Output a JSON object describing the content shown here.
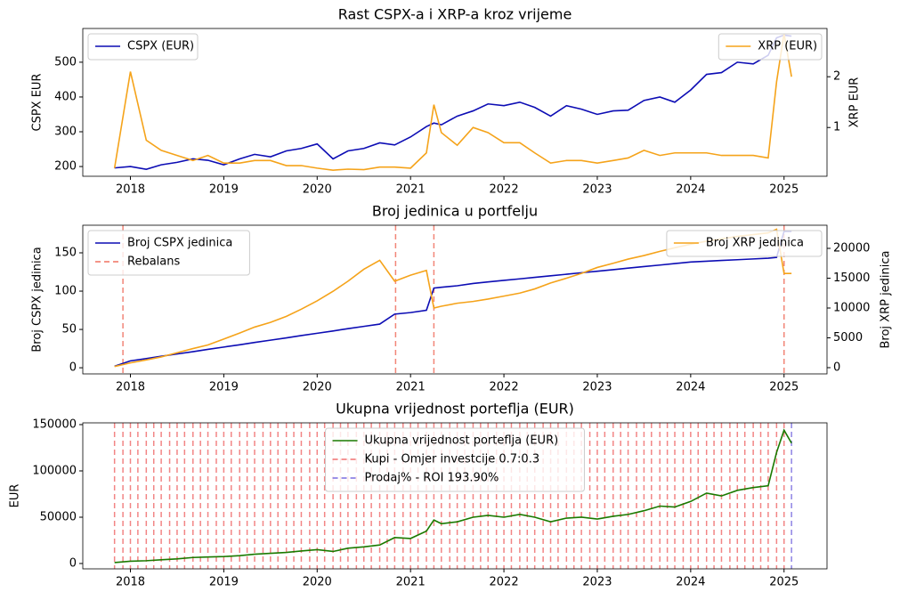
{
  "chart_data": [
    {
      "type": "line",
      "title": "Rast CSPX-a i XRP-a kroz vrijeme",
      "ylabel": "CSPX EUR",
      "y2label": "XRP EUR",
      "x": [
        2017.83,
        2018.0,
        2018.17,
        2018.33,
        2018.5,
        2018.67,
        2018.83,
        2019.0,
        2019.17,
        2019.33,
        2019.5,
        2019.67,
        2019.83,
        2020.0,
        2020.17,
        2020.33,
        2020.5,
        2020.67,
        2020.83,
        2021.0,
        2021.17,
        2021.25,
        2021.33,
        2021.5,
        2021.67,
        2021.83,
        2022.0,
        2022.17,
        2022.33,
        2022.5,
        2022.67,
        2022.83,
        2023.0,
        2023.17,
        2023.33,
        2023.5,
        2023.67,
        2023.83,
        2024.0,
        2024.17,
        2024.33,
        2024.5,
        2024.67,
        2024.83,
        2024.92,
        2025.0,
        2025.08
      ],
      "xlim": [
        2017.49,
        2025.46
      ],
      "xticks": [
        2018,
        2019,
        2020,
        2021,
        2022,
        2023,
        2024,
        2025
      ],
      "ylim": [
        172,
        597
      ],
      "yticks": [
        200,
        300,
        400,
        500
      ],
      "y2lim": [
        0.04,
        2.95
      ],
      "y2ticks": [
        1,
        2
      ],
      "series": [
        {
          "name": "CSPX (EUR)",
          "color": "#0c0cb4",
          "legend": "upper left",
          "values": [
            196,
            200,
            192,
            205,
            212,
            222,
            218,
            205,
            222,
            235,
            228,
            245,
            252,
            265,
            222,
            245,
            252,
            268,
            262,
            285,
            315,
            325,
            320,
            345,
            360,
            380,
            375,
            385,
            370,
            345,
            375,
            365,
            350,
            360,
            362,
            390,
            400,
            385,
            420,
            465,
            470,
            500,
            495,
            520,
            570,
            578,
            575
          ]
        },
        {
          "name": "XRP (EUR)",
          "color": "#f5a31a",
          "axis": "y2",
          "legend": "upper right",
          "values": [
            0.2,
            2.1,
            0.75,
            0.55,
            0.45,
            0.35,
            0.45,
            0.3,
            0.3,
            0.35,
            0.35,
            0.25,
            0.25,
            0.2,
            0.16,
            0.18,
            0.17,
            0.22,
            0.22,
            0.2,
            0.5,
            1.45,
            0.9,
            0.65,
            1.0,
            0.9,
            0.7,
            0.7,
            0.5,
            0.3,
            0.35,
            0.35,
            0.3,
            0.35,
            0.4,
            0.55,
            0.45,
            0.5,
            0.5,
            0.5,
            0.45,
            0.45,
            0.45,
            0.4,
            1.9,
            2.85,
            2.0
          ]
        }
      ]
    },
    {
      "type": "line",
      "title": "Broj jedinica u portfelju",
      "ylabel": "Broj CSPX jedinica",
      "y2label": "Broj XRP jedinica",
      "x": [
        2017.83,
        2018.0,
        2018.17,
        2018.33,
        2018.5,
        2018.67,
        2018.83,
        2019.0,
        2019.17,
        2019.33,
        2019.5,
        2019.67,
        2019.83,
        2020.0,
        2020.17,
        2020.33,
        2020.5,
        2020.67,
        2020.83,
        2021.0,
        2021.17,
        2021.25,
        2021.33,
        2021.5,
        2021.67,
        2021.83,
        2022.0,
        2022.17,
        2022.33,
        2022.5,
        2022.67,
        2022.83,
        2023.0,
        2023.17,
        2023.33,
        2023.5,
        2023.67,
        2023.83,
        2024.0,
        2024.17,
        2024.33,
        2024.5,
        2024.67,
        2024.83,
        2024.92,
        2025.0,
        2025.08
      ],
      "xlim": [
        2017.49,
        2025.46
      ],
      "xticks": [
        2018,
        2019,
        2020,
        2021,
        2022,
        2023,
        2024,
        2025
      ],
      "ylim": [
        -8,
        186
      ],
      "yticks": [
        0,
        50,
        100,
        150
      ],
      "y2lim": [
        -1045,
        23880
      ],
      "y2ticks": [
        0,
        5000,
        10000,
        15000,
        20000
      ],
      "series": [
        {
          "name": "Broj CSPX jedinica",
          "color": "#0c0cb4",
          "legend": "upper left",
          "values": [
            2,
            9,
            12,
            15,
            18,
            21,
            24,
            27,
            30,
            33,
            36,
            39,
            42,
            45,
            48,
            51,
            54,
            57,
            70,
            72,
            75,
            104,
            105,
            107,
            110,
            112,
            114,
            116,
            118,
            120,
            122,
            124,
            126,
            128,
            130,
            132,
            134,
            136,
            138,
            139,
            140,
            141,
            142,
            143,
            144,
            178,
            178
          ]
        },
        {
          "name": "Broj XRP jedinica",
          "color": "#f5a31a",
          "axis": "y2",
          "legend": "upper right",
          "values": [
            200,
            800,
            1300,
            1800,
            2500,
            3200,
            3800,
            4800,
            5800,
            6800,
            7600,
            8600,
            9800,
            11200,
            12800,
            14500,
            16500,
            18000,
            14500,
            15500,
            16300,
            10000,
            10300,
            10800,
            11100,
            11500,
            12000,
            12500,
            13200,
            14200,
            15000,
            15800,
            16800,
            17500,
            18200,
            18800,
            19500,
            20100,
            20700,
            21200,
            21600,
            22000,
            22300,
            22600,
            23200,
            15800,
            15800
          ]
        }
      ],
      "vlines": [
        {
          "name": "Rebalans",
          "color": "#f07060",
          "legend": "upper left",
          "x": [
            2017.92,
            2020.84,
            2021.25,
            2025.0
          ]
        }
      ]
    },
    {
      "type": "line",
      "title": "Ukupna vrijednost porteflja (EUR)",
      "ylabel": "EUR",
      "x": [
        2017.83,
        2018.0,
        2018.17,
        2018.33,
        2018.5,
        2018.67,
        2018.83,
        2019.0,
        2019.17,
        2019.33,
        2019.5,
        2019.67,
        2019.83,
        2020.0,
        2020.17,
        2020.33,
        2020.5,
        2020.67,
        2020.83,
        2021.0,
        2021.17,
        2021.25,
        2021.33,
        2021.5,
        2021.67,
        2021.83,
        2022.0,
        2022.17,
        2022.33,
        2022.5,
        2022.67,
        2022.83,
        2023.0,
        2023.17,
        2023.33,
        2023.5,
        2023.67,
        2023.83,
        2024.0,
        2024.17,
        2024.33,
        2024.5,
        2024.67,
        2024.83,
        2024.92,
        2025.0,
        2025.08
      ],
      "xlim": [
        2017.49,
        2025.46
      ],
      "xticks": [
        2018,
        2019,
        2020,
        2021,
        2022,
        2023,
        2024,
        2025
      ],
      "ylim": [
        -5770,
        151900
      ],
      "yticks": [
        0,
        50000,
        100000,
        150000
      ],
      "series": [
        {
          "name": "Ukupna vrijednost porteflja (EUR)",
          "color": "#1a7a00",
          "legend": "upper center",
          "values": [
            1000,
            2500,
            3000,
            4000,
            5000,
            6500,
            7000,
            7500,
            8500,
            10000,
            11000,
            12000,
            13500,
            15000,
            13000,
            16500,
            18000,
            20000,
            28000,
            27000,
            35000,
            47000,
            43000,
            45000,
            50000,
            52000,
            50000,
            53000,
            50000,
            45000,
            49000,
            50000,
            48000,
            51000,
            53000,
            57000,
            62000,
            61000,
            67000,
            76000,
            73000,
            79000,
            82000,
            84000,
            120000,
            144000,
            130000
          ]
        }
      ],
      "vlines": [
        {
          "name": "Kupi - Omjer investcije 0.7:0.3",
          "color": "#f07070",
          "legend": "upper center",
          "x": [
            2017.83,
            2017.92,
            2018.0,
            2018.08,
            2018.17,
            2018.25,
            2018.33,
            2018.42,
            2018.5,
            2018.58,
            2018.67,
            2018.75,
            2018.83,
            2018.92,
            2019.0,
            2019.08,
            2019.17,
            2019.25,
            2019.33,
            2019.42,
            2019.5,
            2019.58,
            2019.67,
            2019.75,
            2019.83,
            2019.92,
            2020.0,
            2020.08,
            2020.17,
            2020.25,
            2020.33,
            2020.42,
            2020.5,
            2020.58,
            2020.67,
            2020.75,
            2020.83,
            2020.92,
            2021.0,
            2021.08,
            2021.17,
            2021.25,
            2021.33,
            2021.42,
            2021.5,
            2021.58,
            2021.67,
            2021.75,
            2021.83,
            2021.92,
            2022.0,
            2022.08,
            2022.17,
            2022.25,
            2022.33,
            2022.42,
            2022.5,
            2022.58,
            2022.67,
            2022.75,
            2022.83,
            2022.92,
            2023.0,
            2023.08,
            2023.17,
            2023.25,
            2023.33,
            2023.42,
            2023.5,
            2023.58,
            2023.67,
            2023.75,
            2023.83,
            2023.92,
            2024.0,
            2024.08,
            2024.17,
            2024.25,
            2024.33,
            2024.42,
            2024.5,
            2024.58,
            2024.67,
            2024.75,
            2024.83,
            2024.92,
            2025.0
          ]
        },
        {
          "name": "Prodaj% - ROI 193.90%",
          "color": "#7a6ee0",
          "legend": "upper center",
          "x": [
            2025.08
          ]
        }
      ]
    }
  ]
}
